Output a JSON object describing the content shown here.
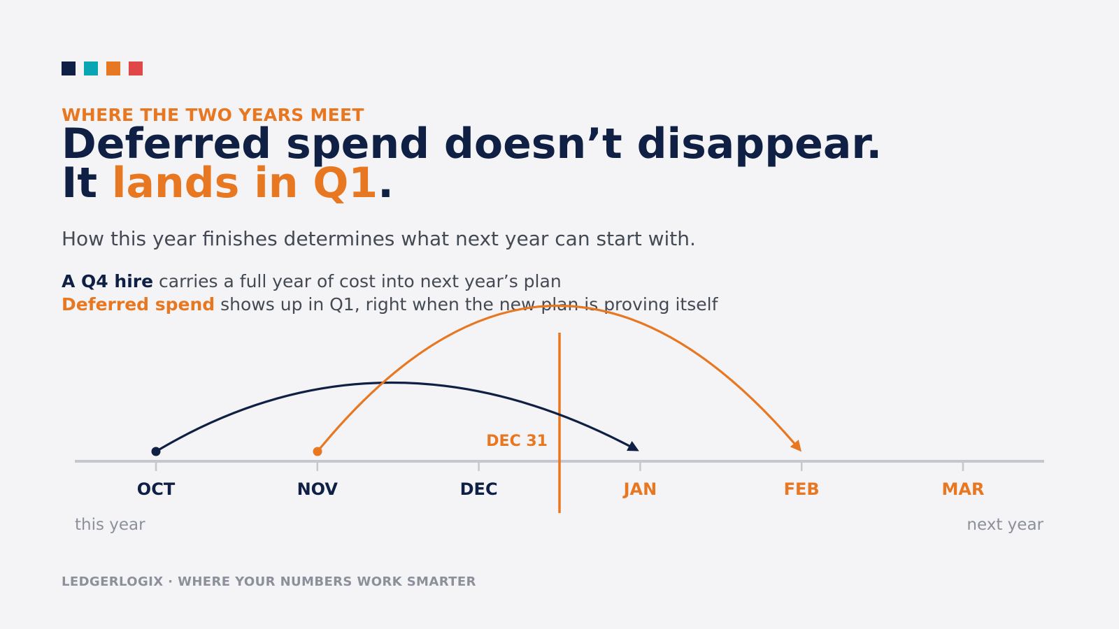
{
  "brand": {
    "swatches": [
      {
        "name": "navy",
        "color": "#0f2044"
      },
      {
        "name": "teal",
        "color": "#0aa5b3"
      },
      {
        "name": "orange",
        "color": "#e87722"
      },
      {
        "name": "red",
        "color": "#e04848"
      }
    ]
  },
  "eyebrow": "WHERE THE TWO YEARS MEET",
  "headline": {
    "line1": "Deferred spend doesn’t disappear.",
    "line2_prefix": "It",
    "line2_accent": "lands in Q1",
    "line2_suffix": "."
  },
  "subtitle": "How this year finishes determines what next year can start with.",
  "points": [
    {
      "bold": "A Q4 hire",
      "text": "carries a full year of cost into next year’s plan"
    },
    {
      "bold": "Deferred spend",
      "text": "shows up in Q1, right when the new plan is proving itself"
    }
  ],
  "timeline": {
    "months": [
      {
        "label": "OCT",
        "year": "this"
      },
      {
        "label": "NOV",
        "year": "this"
      },
      {
        "label": "DEC",
        "year": "this"
      },
      {
        "label": "JAN",
        "year": "next"
      },
      {
        "label": "FEB",
        "year": "next"
      },
      {
        "label": "MAR",
        "year": "next"
      }
    ],
    "boundary_label": "DEC 31",
    "this_year_label": "this year",
    "next_year_label": "next year",
    "arcs": [
      {
        "name": "q4-hire",
        "from": "OCT",
        "to": "JAN",
        "color": "#0f2044"
      },
      {
        "name": "deferred-spend",
        "from": "NOV",
        "to": "FEB",
        "color": "#e87722"
      }
    ],
    "colors": {
      "this_year": "#0f2044",
      "next_year": "#e87722",
      "axis": "#c5c7ce",
      "muted": "#8b909a"
    }
  },
  "footer": "LEDGERLOGIX  ·  WHERE YOUR NUMBERS WORK SMARTER"
}
